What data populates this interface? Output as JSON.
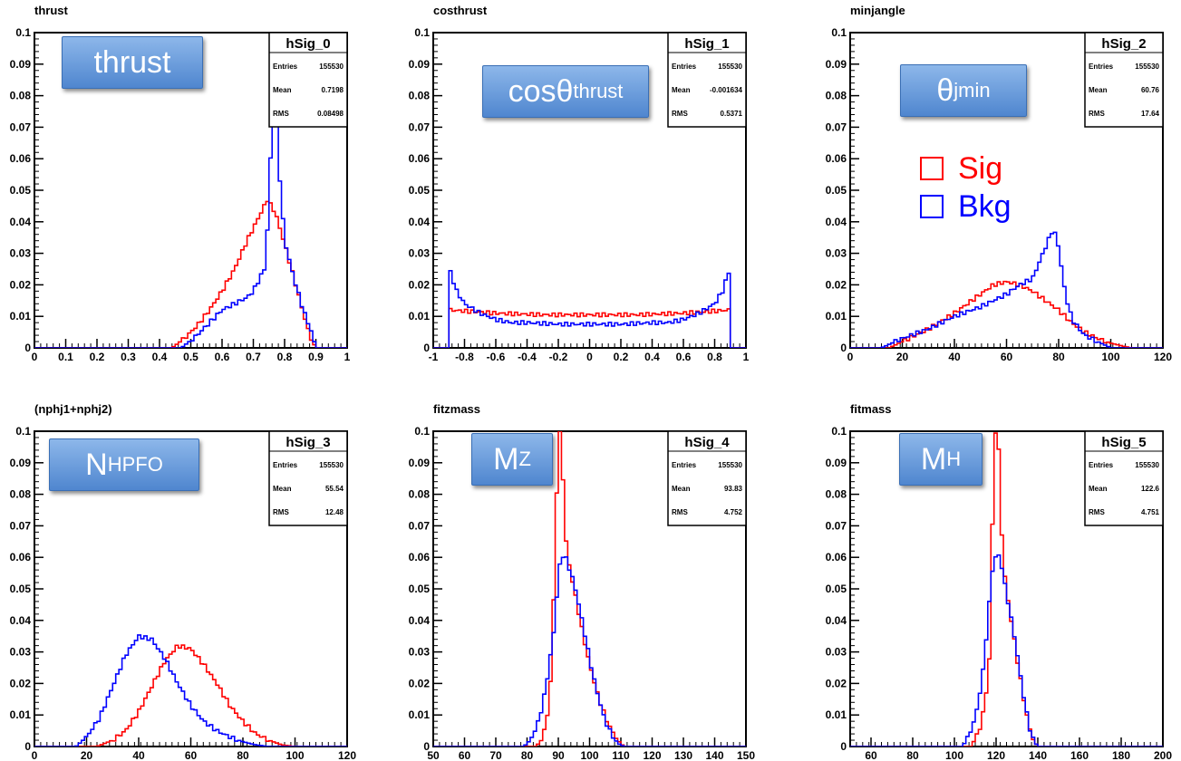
{
  "legend": {
    "items": [
      {
        "label": "Sig",
        "color": "#ff0000"
      },
      {
        "label": "Bkg",
        "color": "#0000ff"
      }
    ]
  },
  "chart_data": [
    {
      "type": "line",
      "title": "thrust",
      "hist_name": "hSig_0",
      "stats": {
        "entries": "155530",
        "mean": "0.7198",
        "rms": "0.08498"
      },
      "callout": {
        "main": "thrust",
        "sub": ""
      },
      "xlim": [
        0,
        1
      ],
      "ylim": [
        0,
        0.1
      ],
      "xticks": [
        "0",
        "0.1",
        "0.2",
        "0.3",
        "0.4",
        "0.5",
        "0.6",
        "0.7",
        "0.8",
        "0.9",
        "1"
      ],
      "yticks": [
        "0",
        "0.01",
        "0.02",
        "0.03",
        "0.04",
        "0.05",
        "0.06",
        "0.07",
        "0.08",
        "0.09",
        "0.1"
      ],
      "series": [
        {
          "color": "#ff0000",
          "x": [
            0.44,
            0.48,
            0.52,
            0.56,
            0.6,
            0.64,
            0.68,
            0.72,
            0.745,
            0.77,
            0.8,
            0.83,
            0.86,
            0.88,
            0.9
          ],
          "y": [
            0,
            0.003,
            0.007,
            0.012,
            0.018,
            0.025,
            0.034,
            0.042,
            0.047,
            0.043,
            0.033,
            0.022,
            0.011,
            0.004,
            0
          ]
        },
        {
          "color": "#0000ff",
          "x": [
            0.47,
            0.52,
            0.56,
            0.6,
            0.64,
            0.68,
            0.7,
            0.72,
            0.74,
            0.755,
            0.765,
            0.78,
            0.8,
            0.83,
            0.86,
            0.89,
            0.9
          ],
          "y": [
            0,
            0.004,
            0.008,
            0.012,
            0.014,
            0.016,
            0.018,
            0.022,
            0.026,
            0.06,
            0.1,
            0.06,
            0.034,
            0.022,
            0.012,
            0.004,
            0
          ]
        }
      ]
    },
    {
      "type": "line",
      "title": "costhrust",
      "hist_name": "hSig_1",
      "stats": {
        "entries": "155530",
        "mean": "-0.001634",
        "rms": "0.5371"
      },
      "callout": {
        "main": "cosθ",
        "sub": "thrust"
      },
      "xlim": [
        -1,
        1
      ],
      "ylim": [
        0,
        0.1
      ],
      "xticks": [
        "-1",
        "-0.8",
        "-0.6",
        "-0.4",
        "-0.2",
        "0",
        "0.2",
        "0.4",
        "0.6",
        "0.8",
        "1"
      ],
      "yticks": [
        "0",
        "0.01",
        "0.02",
        "0.03",
        "0.04",
        "0.05",
        "0.06",
        "0.07",
        "0.08",
        "0.09",
        "0.1"
      ],
      "series": [
        {
          "color": "#ff0000",
          "x": [
            -0.9,
            -0.89,
            -0.6,
            -0.3,
            0,
            0.3,
            0.6,
            0.89,
            0.9
          ],
          "y": [
            0,
            0.012,
            0.011,
            0.0105,
            0.0105,
            0.0105,
            0.011,
            0.012,
            0
          ]
        },
        {
          "color": "#0000ff",
          "x": [
            -0.9,
            -0.89,
            -0.85,
            -0.8,
            -0.7,
            -0.6,
            -0.5,
            -0.4,
            -0.2,
            0,
            0.2,
            0.4,
            0.5,
            0.6,
            0.7,
            0.8,
            0.85,
            0.89,
            0.9
          ],
          "y": [
            0,
            0.024,
            0.018,
            0.014,
            0.011,
            0.009,
            0.008,
            0.008,
            0.0075,
            0.0075,
            0.0075,
            0.008,
            0.008,
            0.009,
            0.011,
            0.014,
            0.018,
            0.024,
            0
          ]
        }
      ]
    },
    {
      "type": "line",
      "title": "minjangle",
      "hist_name": "hSig_2",
      "stats": {
        "entries": "155530",
        "mean": "60.76",
        "rms": "17.64"
      },
      "callout": {
        "main": "θ",
        "sub": "jmin"
      },
      "xlim": [
        0,
        120
      ],
      "ylim": [
        0,
        0.1
      ],
      "xticks": [
        "0",
        "20",
        "40",
        "60",
        "80",
        "100",
        "120"
      ],
      "yticks": [
        "0",
        "0.01",
        "0.02",
        "0.03",
        "0.04",
        "0.05",
        "0.06",
        "0.07",
        "0.08",
        "0.09",
        "0.1"
      ],
      "series": [
        {
          "color": "#ff0000",
          "x": [
            15,
            20,
            30,
            40,
            50,
            55,
            60,
            65,
            70,
            75,
            80,
            85,
            90,
            95,
            100,
            105,
            108
          ],
          "y": [
            0,
            0.002,
            0.006,
            0.011,
            0.017,
            0.02,
            0.021,
            0.02,
            0.018,
            0.015,
            0.012,
            0.008,
            0.005,
            0.003,
            0.0015,
            0.0005,
            0
          ]
        },
        {
          "color": "#0000ff",
          "x": [
            12,
            20,
            30,
            40,
            50,
            60,
            65,
            70,
            73,
            76,
            78,
            80,
            82,
            84,
            86,
            90,
            95,
            100
          ],
          "y": [
            0,
            0.003,
            0.006,
            0.01,
            0.013,
            0.017,
            0.02,
            0.022,
            0.028,
            0.034,
            0.038,
            0.032,
            0.02,
            0.012,
            0.008,
            0.004,
            0.002,
            0
          ]
        }
      ]
    },
    {
      "type": "line",
      "title": "(nphj1+nphj2)",
      "hist_name": "hSig_3",
      "stats": {
        "entries": "155530",
        "mean": "55.54",
        "rms": "12.48"
      },
      "callout": {
        "main": "N",
        "sub": "HPFO"
      },
      "xlim": [
        0,
        120
      ],
      "ylim": [
        0,
        0.1
      ],
      "xticks": [
        "0",
        "20",
        "40",
        "60",
        "80",
        "100",
        "120"
      ],
      "yticks": [
        "0",
        "0.01",
        "0.02",
        "0.03",
        "0.04",
        "0.05",
        "0.06",
        "0.07",
        "0.08",
        "0.09",
        "0.1"
      ],
      "series": [
        {
          "color": "#ff0000",
          "x": [
            24,
            30,
            35,
            40,
            45,
            50,
            55,
            60,
            65,
            70,
            75,
            80,
            85,
            90,
            95,
            100
          ],
          "y": [
            0,
            0.002,
            0.005,
            0.011,
            0.019,
            0.027,
            0.032,
            0.031,
            0.026,
            0.02,
            0.013,
            0.008,
            0.004,
            0.002,
            0.0005,
            0
          ]
        },
        {
          "color": "#0000ff",
          "x": [
            16,
            20,
            25,
            30,
            35,
            40,
            45,
            50,
            55,
            60,
            65,
            70,
            75,
            80,
            85,
            90
          ],
          "y": [
            0,
            0.003,
            0.009,
            0.019,
            0.029,
            0.035,
            0.034,
            0.028,
            0.02,
            0.013,
            0.008,
            0.005,
            0.003,
            0.0015,
            0.0005,
            0
          ]
        }
      ]
    },
    {
      "type": "line",
      "title": "fitzmass",
      "hist_name": "hSig_4",
      "stats": {
        "entries": "155530",
        "mean": "93.83",
        "rms": "4.752"
      },
      "callout": {
        "main": "M",
        "sub": "Z"
      },
      "xlim": [
        50,
        150
      ],
      "ylim": [
        0,
        0.1
      ],
      "xticks": [
        "50",
        "60",
        "70",
        "80",
        "90",
        "100",
        "110",
        "120",
        "130",
        "140",
        "150"
      ],
      "yticks": [
        "0",
        "0.01",
        "0.02",
        "0.03",
        "0.04",
        "0.05",
        "0.06",
        "0.07",
        "0.08",
        "0.09",
        "0.1"
      ],
      "series": [
        {
          "color": "#ff0000",
          "x": [
            83,
            85,
            87,
            88,
            89,
            90,
            91,
            92,
            93,
            94,
            95,
            96,
            98,
            100,
            103,
            106,
            109,
            111
          ],
          "y": [
            0,
            0.003,
            0.012,
            0.03,
            0.062,
            0.1,
            0.1,
            0.07,
            0.06,
            0.055,
            0.05,
            0.045,
            0.035,
            0.026,
            0.015,
            0.007,
            0.002,
            0
          ]
        },
        {
          "color": "#0000ff",
          "x": [
            79,
            81,
            83,
            85,
            87,
            89,
            90,
            91,
            92,
            93,
            95,
            97,
            99,
            101,
            103,
            105,
            107,
            109,
            111
          ],
          "y": [
            0,
            0.002,
            0.006,
            0.013,
            0.025,
            0.04,
            0.055,
            0.06,
            0.061,
            0.058,
            0.052,
            0.043,
            0.033,
            0.023,
            0.015,
            0.008,
            0.004,
            0.001,
            0
          ]
        }
      ]
    },
    {
      "type": "line",
      "title": "fitmass",
      "hist_name": "hSig_5",
      "stats": {
        "entries": "155530",
        "mean": "122.6",
        "rms": "4.751"
      },
      "callout": {
        "main": "M",
        "sub": "H"
      },
      "xlim": [
        50,
        200
      ],
      "ylim": [
        0,
        0.1
      ],
      "xticks": [
        "60",
        "80",
        "100",
        "120",
        "140",
        "160",
        "180",
        "200"
      ],
      "yticks": [
        "0",
        "0.01",
        "0.02",
        "0.03",
        "0.04",
        "0.05",
        "0.06",
        "0.07",
        "0.08",
        "0.09",
        "0.1"
      ],
      "series": [
        {
          "color": "#ff0000",
          "x": [
            108,
            112,
            115,
            117,
            118,
            119,
            120,
            121,
            122,
            124,
            126,
            128,
            130,
            132,
            134,
            136,
            138,
            140
          ],
          "y": [
            0,
            0.005,
            0.015,
            0.03,
            0.06,
            0.1,
            0.1,
            0.1,
            0.075,
            0.055,
            0.045,
            0.037,
            0.028,
            0.02,
            0.012,
            0.006,
            0.002,
            0
          ]
        },
        {
          "color": "#0000ff",
          "x": [
            104,
            108,
            111,
            114,
            116,
            118,
            120,
            122,
            124,
            126,
            128,
            130,
            132,
            134,
            136,
            138,
            140
          ],
          "y": [
            0,
            0.005,
            0.012,
            0.025,
            0.04,
            0.055,
            0.061,
            0.06,
            0.052,
            0.045,
            0.038,
            0.03,
            0.021,
            0.013,
            0.006,
            0.002,
            0
          ]
        }
      ]
    }
  ]
}
